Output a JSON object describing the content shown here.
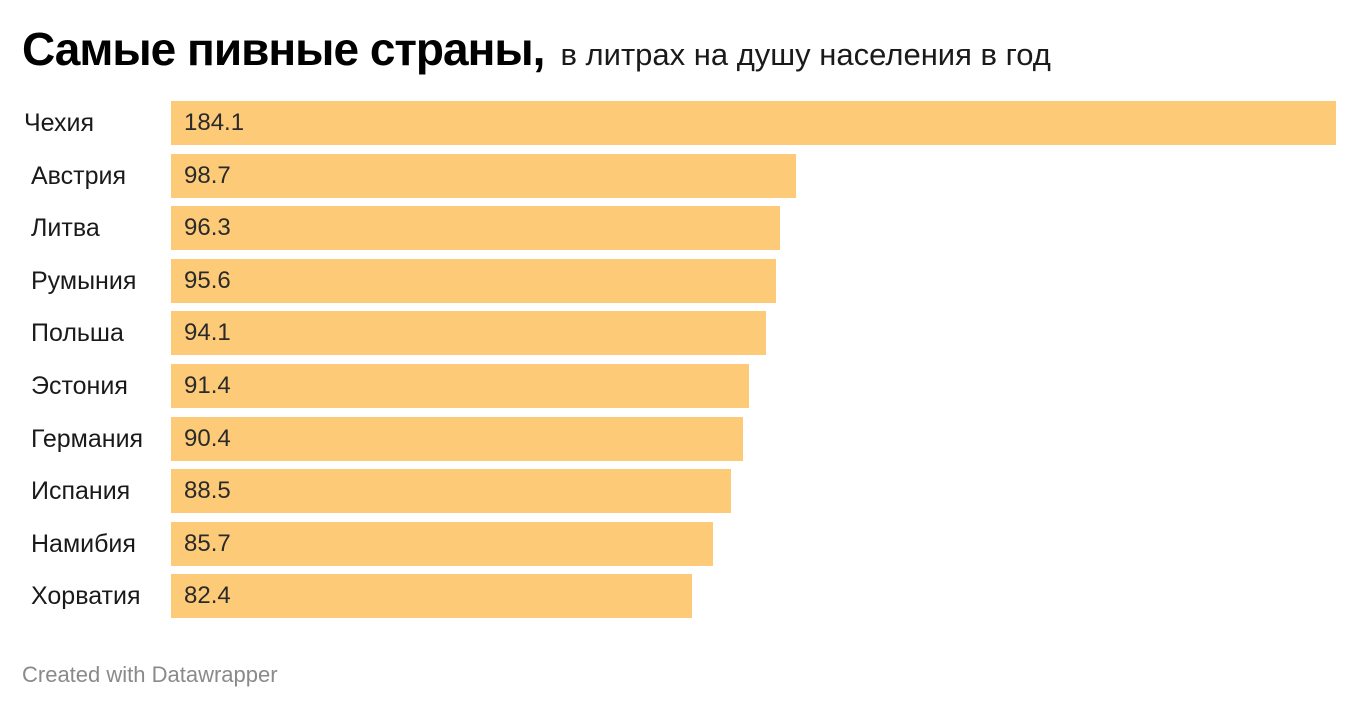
{
  "header": {
    "title": "Самые пивные страны,",
    "subtitle": "в литрах на душу населения в год"
  },
  "footer": {
    "credit": "Created with Datawrapper"
  },
  "colors": {
    "bar": "#fdcb78",
    "background": "#ffffff"
  },
  "chart_data": {
    "type": "bar",
    "orientation": "horizontal",
    "title": "Самые пивные страны,",
    "subtitle": "в литрах на душу населения в год",
    "categories": [
      "Чехия",
      "Австрия",
      "Литва",
      "Румыния",
      "Польша",
      "Эстония",
      "Германия",
      "Испания",
      "Намибия",
      "Хорватия"
    ],
    "values": [
      184.1,
      98.7,
      96.3,
      95.6,
      94.1,
      91.4,
      90.4,
      88.5,
      85.7,
      82.4
    ],
    "value_labels": [
      "184.1",
      "98.7",
      "96.3",
      "95.6",
      "94.1",
      "91.4",
      "90.4",
      "88.5",
      "85.7",
      "82.4"
    ],
    "xlim": [
      0,
      184.1
    ],
    "grid": false,
    "legend": "none"
  }
}
